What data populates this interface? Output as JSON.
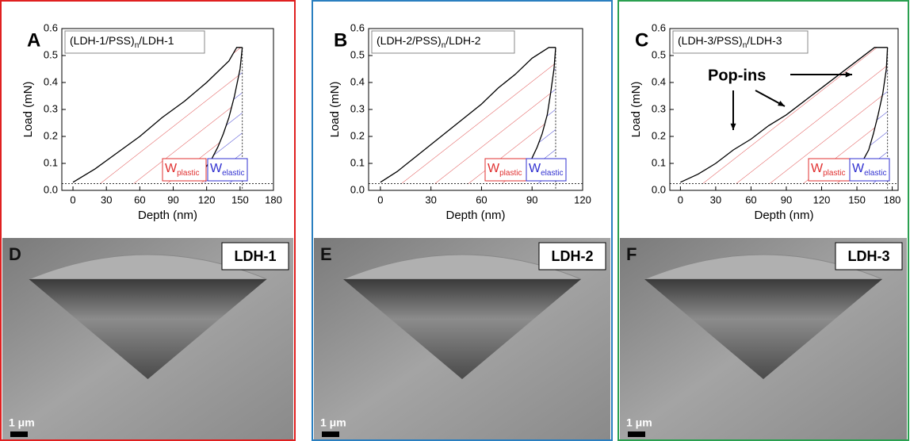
{
  "chart_data": [
    {
      "type": "line",
      "panel": "A",
      "title": [
        "(LDH-1/PSS)",
        "n",
        "/LDH-1"
      ],
      "xlabel": "Depth (nm)",
      "ylabel": "Load (mN)",
      "xlim": [
        -10,
        180
      ],
      "ylim": [
        0,
        0.6
      ],
      "xticks": [
        0,
        30,
        60,
        90,
        120,
        150,
        180
      ],
      "yticks": [
        {
          "value": 0,
          "label": "0.0"
        },
        0.1,
        0.2,
        0.3,
        0.4,
        0.5,
        0.6
      ],
      "baseline": 0.025,
      "series": [
        {
          "color": "#000000",
          "x": [
            0,
            20,
            40,
            60,
            80,
            100,
            120,
            140,
            147,
            152
          ],
          "values": [
            0.03,
            0.08,
            0.14,
            0.2,
            0.27,
            0.33,
            0.4,
            0.48,
            0.53,
            0.53
          ]
        },
        {
          "color": "#000000",
          "x": [
            152,
            150,
            145,
            140,
            135,
            130,
            125,
            120,
            118
          ],
          "values": [
            0.53,
            0.45,
            0.35,
            0.27,
            0.21,
            0.16,
            0.12,
            0.09,
            0.08
          ]
        }
      ],
      "annotations": [
        {
          "text": "W",
          "sub": "plastic",
          "color": "#e03030"
        },
        {
          "text": "W",
          "sub": "elastic",
          "color": "#3030d0"
        }
      ]
    },
    {
      "type": "line",
      "panel": "B",
      "title": [
        "(LDH-2/PSS)",
        "n",
        "/LDH-2"
      ],
      "xlabel": "Depth (nm)",
      "ylabel": "Load (mN)",
      "xlim": [
        -7,
        120
      ],
      "ylim": [
        0,
        0.6
      ],
      "xticks": [
        0,
        30,
        60,
        90,
        120
      ],
      "yticks": [
        {
          "value": 0,
          "label": "0.0"
        },
        0.1,
        0.2,
        0.3,
        0.4,
        0.5,
        0.6
      ],
      "baseline": 0.025,
      "series": [
        {
          "color": "#000000",
          "x": [
            0,
            10,
            20,
            30,
            40,
            50,
            60,
            70,
            80,
            90,
            100,
            104
          ],
          "values": [
            0.03,
            0.07,
            0.12,
            0.17,
            0.22,
            0.27,
            0.32,
            0.38,
            0.43,
            0.49,
            0.53,
            0.53
          ]
        },
        {
          "color": "#000000",
          "x": [
            104,
            103,
            101,
            99,
            96,
            93,
            90,
            88,
            87
          ],
          "values": [
            0.53,
            0.45,
            0.36,
            0.28,
            0.21,
            0.16,
            0.12,
            0.09,
            0.07
          ]
        }
      ],
      "annotations": [
        {
          "text": "W",
          "sub": "plastic",
          "color": "#e03030"
        },
        {
          "text": "W",
          "sub": "elastic",
          "color": "#3030d0"
        }
      ]
    },
    {
      "type": "line",
      "panel": "C",
      "title": [
        "(LDH-3/PSS)",
        "n",
        "/LDH-3"
      ],
      "xlabel": "Depth (nm)",
      "ylabel": "Load (mN)",
      "xlim": [
        -9,
        185
      ],
      "ylim": [
        0,
        0.6
      ],
      "xticks": [
        0,
        30,
        60,
        90,
        120,
        150,
        180
      ],
      "yticks": [
        {
          "value": 0,
          "label": "0.0"
        },
        0.1,
        0.2,
        0.3,
        0.4,
        0.5,
        0.6
      ],
      "baseline": 0.025,
      "series": [
        {
          "color": "#000000",
          "x": [
            0,
            15,
            30,
            45,
            60,
            75,
            90,
            105,
            120,
            135,
            150,
            165,
            176
          ],
          "values": [
            0.03,
            0.06,
            0.1,
            0.15,
            0.19,
            0.24,
            0.28,
            0.33,
            0.38,
            0.43,
            0.48,
            0.53,
            0.53
          ]
        },
        {
          "color": "#000000",
          "x": [
            176,
            175,
            172,
            168,
            164,
            160,
            155,
            150,
            148
          ],
          "values": [
            0.53,
            0.45,
            0.36,
            0.28,
            0.21,
            0.15,
            0.11,
            0.08,
            0.07
          ]
        }
      ],
      "annotations": [
        {
          "text": "W",
          "sub": "plastic",
          "color": "#e03030"
        },
        {
          "text": "W",
          "sub": "elastic",
          "color": "#3030d0"
        }
      ],
      "callout": "Pop-ins"
    }
  ],
  "images": [
    {
      "panel": "D",
      "label": "LDH-1",
      "scale": "1 μm"
    },
    {
      "panel": "E",
      "label": "LDH-2",
      "scale": "1 μm"
    },
    {
      "panel": "F",
      "label": "LDH-3",
      "scale": "1 μm"
    }
  ]
}
